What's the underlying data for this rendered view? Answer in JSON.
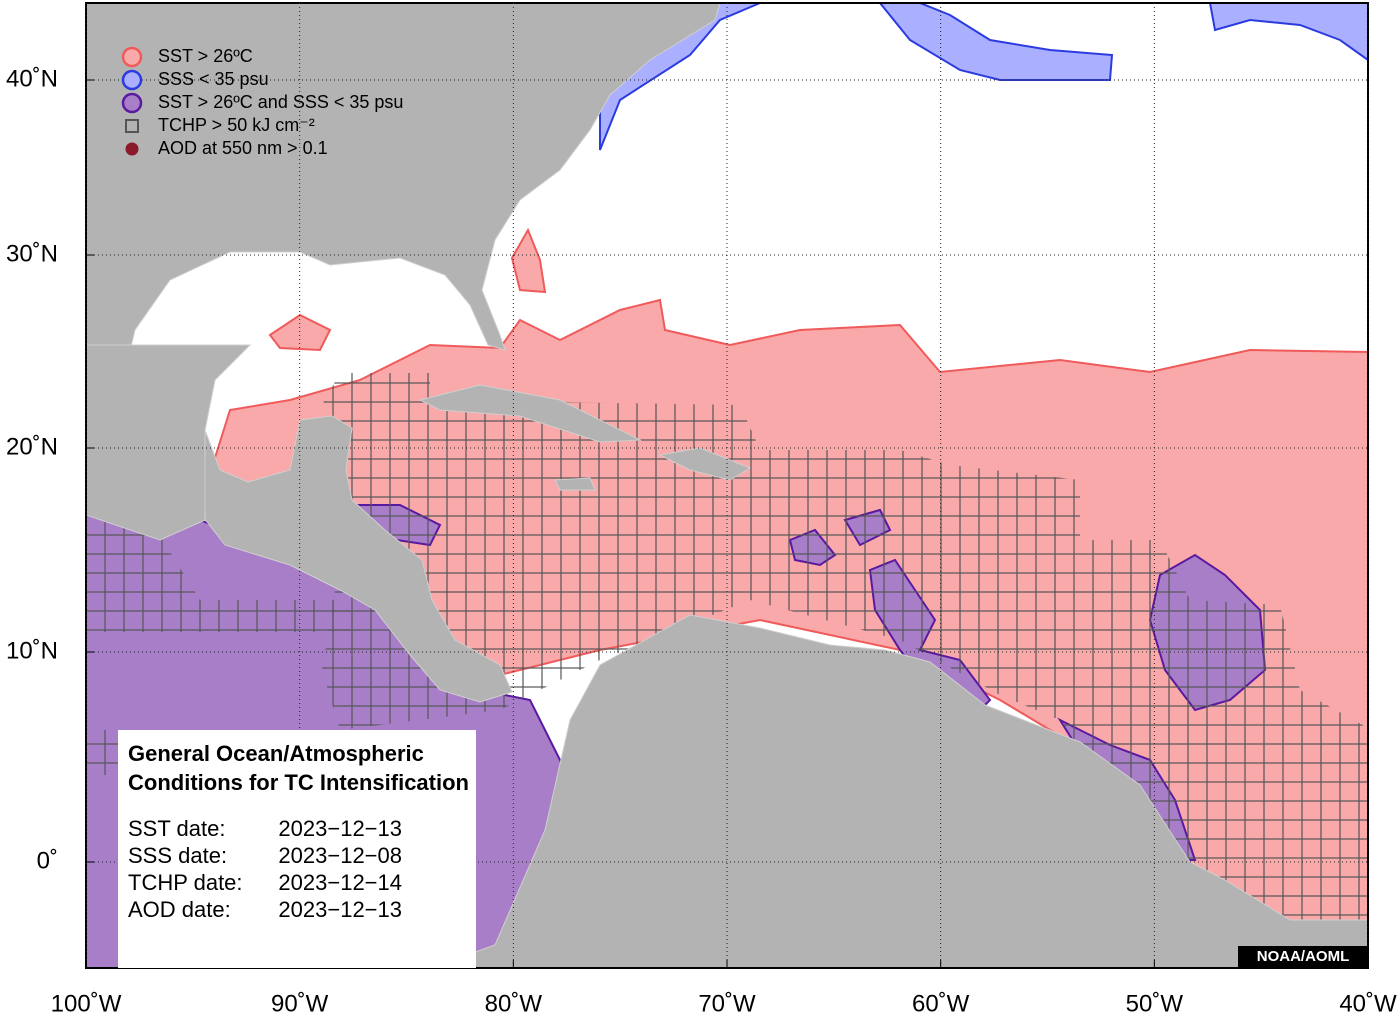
{
  "map": {
    "legend": [
      {
        "label": "SST > 26ºC",
        "fill": "#f9a9a9",
        "stroke": "#f05a5a"
      },
      {
        "label": "SSS < 35 psu",
        "fill": "#aab0ff",
        "stroke": "#2b3be0"
      },
      {
        "label": "SST > 26ºC and SSS < 35 psu",
        "fill": "#a97ec8",
        "stroke": "#5a1aa0"
      },
      {
        "label": "TCHP > 50 kJ cm⁻²",
        "fill": "none",
        "stroke": "#555555"
      },
      {
        "label": "AOD at 550 nm > 0.1",
        "fill": "#8b1a2a",
        "stroke": "#8b1a2a"
      }
    ],
    "xlim": [
      -100,
      -40
    ],
    "xticks": [
      {
        "value": -100,
        "label": "100˚W"
      },
      {
        "value": -90,
        "label": "90˚W"
      },
      {
        "value": -80,
        "label": "80˚W"
      },
      {
        "value": -70,
        "label": "70˚W"
      },
      {
        "value": -60,
        "label": "60˚W"
      },
      {
        "value": -50,
        "label": "50˚W"
      },
      {
        "value": -40,
        "label": "40˚W"
      }
    ],
    "yticks": [
      {
        "value": 0,
        "label": "0˚"
      },
      {
        "value": 10,
        "label": "10˚N"
      },
      {
        "value": 20,
        "label": "20˚N"
      },
      {
        "value": 30,
        "label": "30˚N"
      },
      {
        "value": 40,
        "label": "40˚N"
      }
    ],
    "info_box": {
      "title": [
        "General Ocean/Atmospheric",
        "Conditions for TC Intensification"
      ],
      "rows": [
        {
          "label": "SST date:",
          "date": "2023−12−13"
        },
        {
          "label": "SSS date:",
          "date": "2023−12−08"
        },
        {
          "label": "TCHP date:",
          "date": "2023−12−14"
        },
        {
          "label": "AOD date:",
          "date": "2023−12−13"
        }
      ]
    },
    "credit": "NOAA/AOML"
  }
}
